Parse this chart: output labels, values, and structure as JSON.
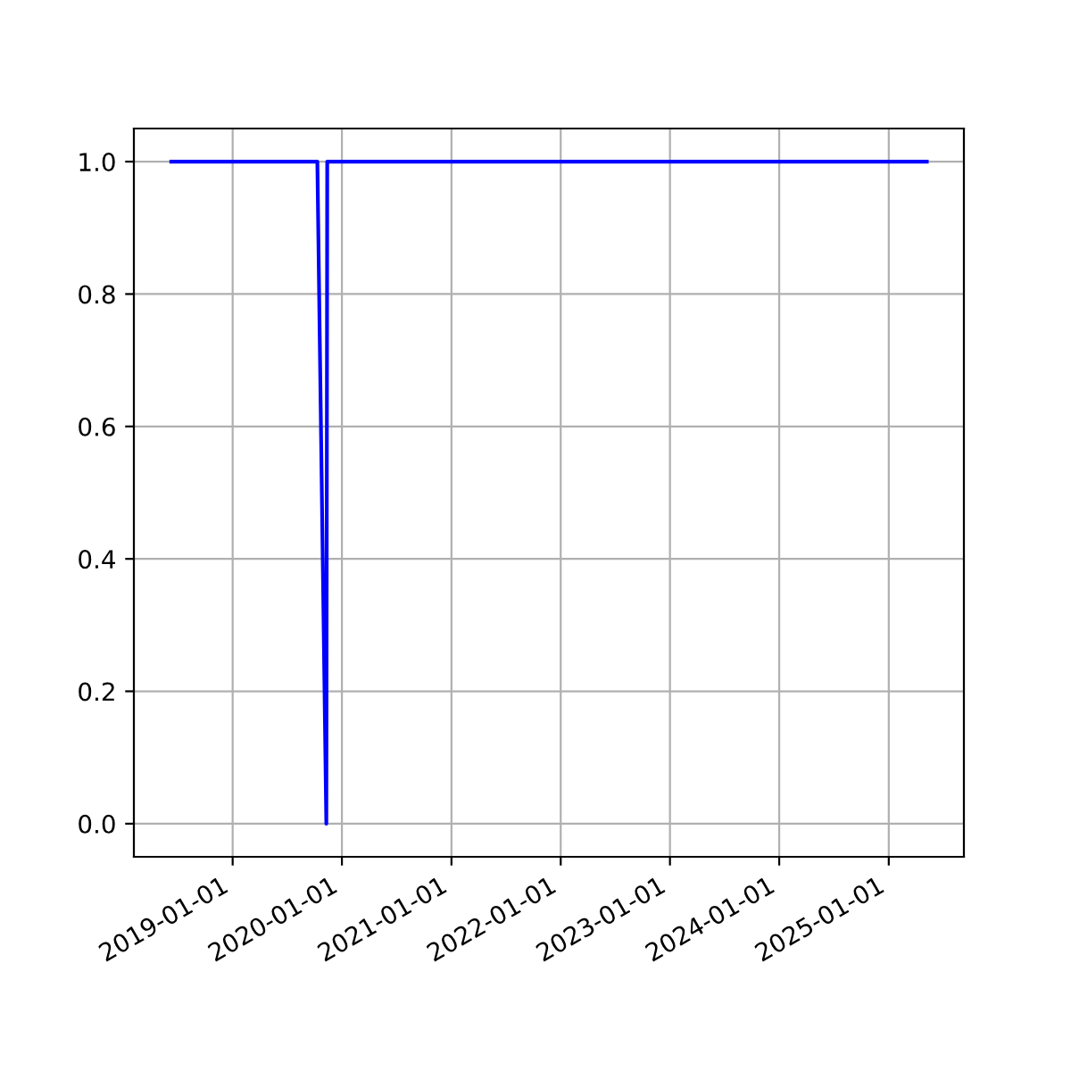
{
  "chart_data": {
    "type": "line",
    "x": [
      "2018-06-10",
      "2019-10-11",
      "2019-11-10",
      "2019-11-13",
      "2025-05-08"
    ],
    "series": [
      {
        "color": "#0000ff",
        "values": [
          1,
          1,
          0,
          1,
          1
        ]
      }
    ],
    "xlim": [
      "2018-02-05",
      "2025-09-09"
    ],
    "xticks": [
      {
        "value": "2019-01-01",
        "label": "2019-01-01"
      },
      {
        "value": "2020-01-01",
        "label": "2020-01-01"
      },
      {
        "value": "2021-01-01",
        "label": "2021-01-01"
      },
      {
        "value": "2022-01-01",
        "label": "2022-01-01"
      },
      {
        "value": "2023-01-01",
        "label": "2023-01-01"
      },
      {
        "value": "2024-01-01",
        "label": "2024-01-01"
      },
      {
        "value": "2025-01-01",
        "label": "2025-01-01"
      }
    ],
    "ylim": [
      -0.05,
      1.05
    ],
    "yticks": [
      {
        "value": 0,
        "label": "0.0"
      },
      {
        "value": 0.2,
        "label": "0.2"
      },
      {
        "value": 0.4,
        "label": "0.4"
      },
      {
        "value": 0.6,
        "label": "0.6"
      },
      {
        "value": 0.8,
        "label": "0.8"
      },
      {
        "value": 1,
        "label": "1.0"
      }
    ],
    "grid": true
  }
}
